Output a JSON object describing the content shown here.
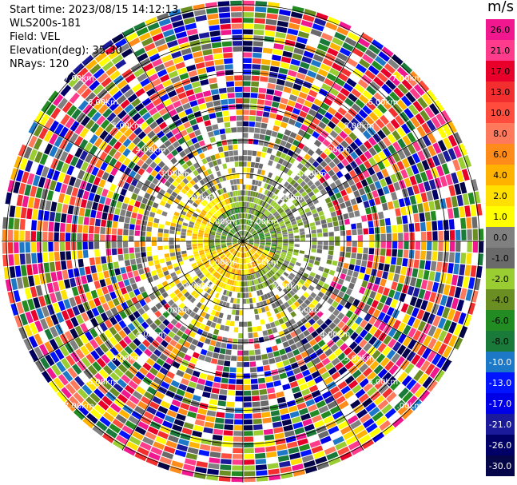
{
  "header": {
    "start_time": "Start time: 2023/08/15 14:12:13",
    "site": "WLS200s-181",
    "field": "Field: VEL",
    "elevation": "Elevation(deg): 35.30",
    "nrays": "NRays: 120"
  },
  "colorbar": {
    "unit": "m/s",
    "bins": [
      {
        "label": "26.0",
        "color": "#f0178f"
      },
      {
        "label": "21.0",
        "color": "#ff3c8c"
      },
      {
        "label": "17.0",
        "color": "#e8002a"
      },
      {
        "label": "13.0",
        "color": "#f22e2e"
      },
      {
        "label": "10.0",
        "color": "#ff4c3c"
      },
      {
        "label": "8.0",
        "color": "#ff7a5c"
      },
      {
        "label": "6.0",
        "color": "#ff8c1a"
      },
      {
        "label": "4.0",
        "color": "#ffb300"
      },
      {
        "label": "2.0",
        "color": "#ffe000"
      },
      {
        "label": "1.0",
        "color": "#ffff00"
      },
      {
        "label": "0.0",
        "color": "#808080"
      },
      {
        "label": "-1.0",
        "color": "#6a6a6a"
      },
      {
        "label": "-2.0",
        "color": "#9acd32"
      },
      {
        "label": "-4.0",
        "color": "#6b8e23"
      },
      {
        "label": "-6.0",
        "color": "#228b22"
      },
      {
        "label": "-8.0",
        "color": "#1a7a3a"
      },
      {
        "label": "-10.0",
        "color": "#1e78c8"
      },
      {
        "label": "-13.0",
        "color": "#0014ff"
      },
      {
        "label": "-17.0",
        "color": "#0000e6"
      },
      {
        "label": "-21.0",
        "color": "#1a1a9a"
      },
      {
        "label": "-26.0",
        "color": "#000066"
      },
      {
        "label": "-30.0",
        "color": "#05054a"
      }
    ]
  },
  "chart_data": {
    "type": "heatmap",
    "projection": "polar PPI (plan position indicator)",
    "field": "VEL",
    "units": "m/s",
    "nrays": 120,
    "range_ring_labels": [
      "1.00km",
      "2.00km",
      "3.00km",
      "4.00km",
      "5.00km",
      "6.00km",
      "7.00km"
    ],
    "colorbar_ticks": [
      26.0,
      21.0,
      17.0,
      13.0,
      10.0,
      8.0,
      6.0,
      4.0,
      2.0,
      1.0,
      0.0,
      -1.0,
      -2.0,
      -4.0,
      -6.0,
      -8.0,
      -10.0,
      -13.0,
      -17.0,
      -21.0,
      -26.0,
      -30.0
    ],
    "range_labels_shown": [
      "7.00km",
      "6.00km",
      "5.00km",
      "4.00km",
      "3.00km",
      "2.00km",
      "1.00km",
      "6.00km",
      "5.00km",
      "4.00km",
      "3.00km",
      "2.00km",
      "1.00km",
      "1.00km",
      "2.00km",
      "3.00km",
      "4.00km",
      "5.00km",
      "6.00km",
      "1.00km",
      "2.00km",
      "3.00km",
      "4.00km",
      "5.00km",
      "7.00km"
    ]
  }
}
